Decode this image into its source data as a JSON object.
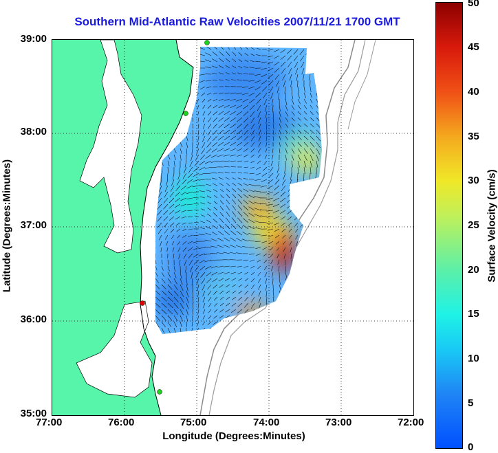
{
  "title": "Southern Mid-Atlantic Raw Velocities 2007/11/21 1700 GMT",
  "x_axis": {
    "label": "Longitude (Degrees:Minutes)",
    "ticks": [
      "77:00",
      "76:00",
      "75:00",
      "74:00",
      "73:00",
      "72:00"
    ]
  },
  "y_axis": {
    "label": "Latitude (Degrees:Minutes)",
    "ticks": [
      "39:00",
      "38:00",
      "37:00",
      "36:00",
      "35:00"
    ]
  },
  "colorbar": {
    "label": "Surface Velocity (cm/s)",
    "ticks": [
      "50",
      "45",
      "40",
      "35",
      "30",
      "25",
      "20",
      "15",
      "10",
      "5",
      "0"
    ],
    "range": [
      0,
      50
    ]
  },
  "colors": {
    "land": "#57f5a9",
    "water": "#ffffff",
    "title": "#1a1adf",
    "station_active": "#1ed21e",
    "station_alert": "#e00000"
  },
  "map": {
    "lon_range": [
      -77,
      -72
    ],
    "lat_range": [
      35,
      39
    ],
    "grid": true,
    "stations": [
      {
        "lon": -74.9,
        "lat": 39.0,
        "status": "active"
      },
      {
        "lon": -75.15,
        "lat": 38.22,
        "status": "active"
      },
      {
        "lon": -75.75,
        "lat": 36.18,
        "status": "alert"
      },
      {
        "lon": -75.52,
        "lat": 35.25,
        "status": "active"
      }
    ]
  }
}
